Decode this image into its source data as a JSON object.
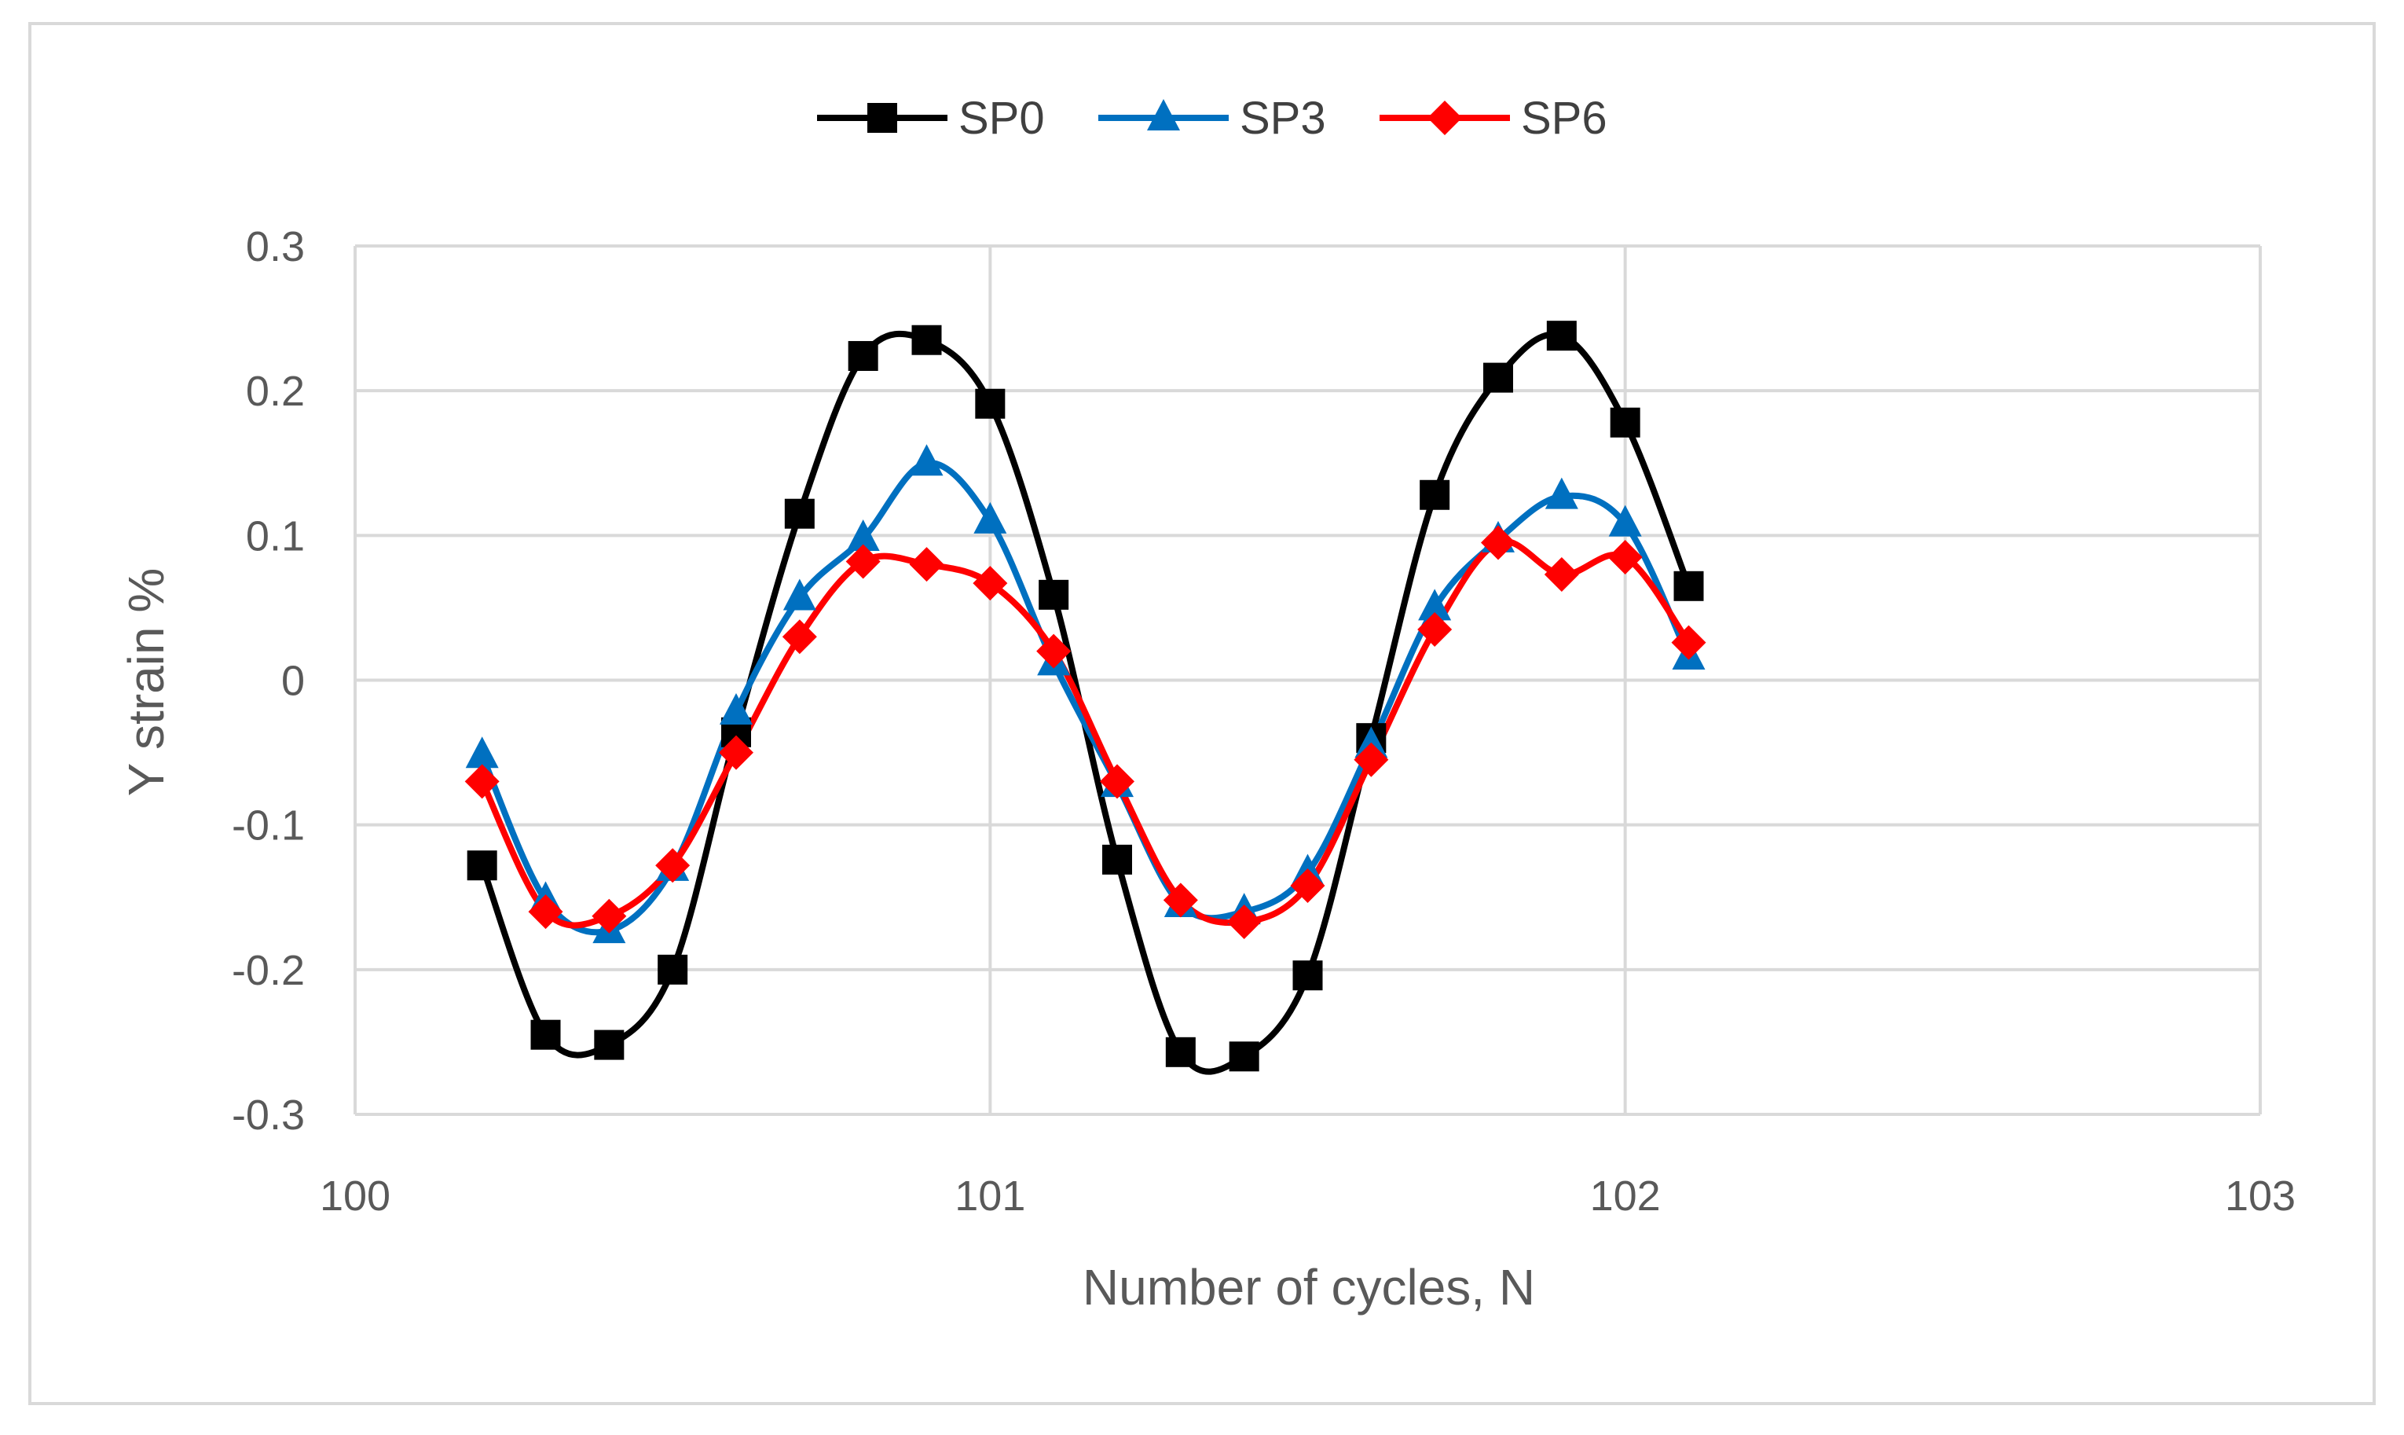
{
  "chart_data": {
    "type": "line",
    "title": "",
    "xlabel": "Number of cycles, N",
    "ylabel": "Y strain %",
    "xlim": [
      100,
      103
    ],
    "ylim": [
      -0.3,
      0.3
    ],
    "xticks": [
      100,
      101,
      102,
      103
    ],
    "yticks": [
      0.3,
      0.2,
      0.1,
      0,
      -0.1,
      -0.2,
      -0.3
    ],
    "xtick_labels": [
      "100",
      "101",
      "102",
      "103"
    ],
    "ytick_labels": [
      "0.3",
      "0.2",
      "0.1",
      "0",
      "-0.1",
      "-0.2",
      "-0.3"
    ],
    "grid": true,
    "legend_position": "top-center",
    "x": [
      100.2,
      100.3,
      100.4,
      100.5,
      100.6,
      100.7,
      100.8,
      100.9,
      101.0,
      101.1,
      101.2,
      101.3,
      101.4,
      101.5,
      101.6,
      101.7,
      101.8,
      101.9,
      102.0,
      102.1
    ],
    "series": [
      {
        "name": "SP0",
        "color": "#000000",
        "marker": "square",
        "values": [
          -0.128,
          -0.245,
          -0.252,
          -0.2,
          -0.036,
          0.115,
          0.224,
          0.235,
          0.191,
          0.059,
          -0.124,
          -0.257,
          -0.26,
          -0.204,
          -0.04,
          0.128,
          0.209,
          0.238,
          0.178,
          0.065
        ]
      },
      {
        "name": "SP3",
        "color": "#0070C0",
        "marker": "triangle",
        "values": [
          -0.052,
          -0.152,
          -0.173,
          -0.13,
          -0.022,
          0.057,
          0.098,
          0.15,
          0.11,
          0.012,
          -0.072,
          -0.155,
          -0.16,
          -0.133,
          -0.045,
          0.05,
          0.097,
          0.127,
          0.108,
          0.016
        ]
      },
      {
        "name": "SP6",
        "color": "#FF0000",
        "marker": "diamond",
        "values": [
          -0.07,
          -0.16,
          -0.163,
          -0.128,
          -0.05,
          0.03,
          0.082,
          0.08,
          0.067,
          0.02,
          -0.07,
          -0.152,
          -0.167,
          -0.142,
          -0.055,
          0.035,
          0.095,
          0.073,
          0.085,
          0.026
        ]
      }
    ]
  }
}
